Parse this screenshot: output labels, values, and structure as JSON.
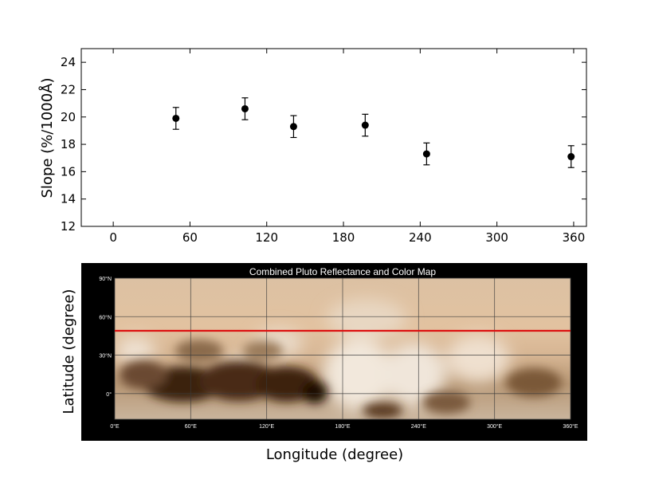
{
  "chart_data": [
    {
      "type": "scatter",
      "xlabel": "",
      "ylabel": "Slope (%/1000Å)",
      "xlim": [
        -25,
        370
      ],
      "ylim": [
        12,
        25
      ],
      "xticks": [
        0,
        60,
        120,
        180,
        240,
        300,
        360
      ],
      "yticks": [
        12,
        14,
        16,
        18,
        20,
        22,
        24
      ],
      "grid": false,
      "series": [
        {
          "points": [
            {
              "x": 49,
              "y": 19.9,
              "err": 0.8
            },
            {
              "x": 103,
              "y": 20.6,
              "err": 0.8
            },
            {
              "x": 141,
              "y": 19.3,
              "err": 0.8
            },
            {
              "x": 197,
              "y": 19.4,
              "err": 0.8
            },
            {
              "x": 245,
              "y": 17.3,
              "err": 0.8
            },
            {
              "x": 358,
              "y": 17.1,
              "err": 0.8
            }
          ],
          "color": "#000000"
        }
      ]
    },
    {
      "type": "map",
      "title": "Combined Pluto Reflectance and Color Map",
      "xlabel": "Longitude (degree)",
      "ylabel": "Latitude (degree)",
      "xticks": [
        "0°E",
        "60°E",
        "120°E",
        "180°E",
        "240°E",
        "300°E",
        "360°E"
      ],
      "yticks": [
        "90°N",
        "60°N",
        "30°N",
        "0°"
      ],
      "x_range": [
        0,
        360
      ],
      "y_range": [
        -20,
        90
      ],
      "highlight_latitude": 49,
      "highlight_color": "#dd1111",
      "grid": true
    }
  ]
}
